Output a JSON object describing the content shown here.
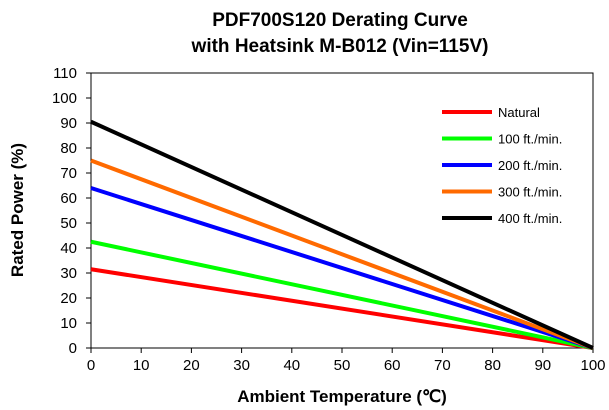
{
  "chart_data": {
    "type": "line",
    "title": [
      "PDF700S120  Derating Curve",
      "with Heatsink M-B012 (Vin=115V)"
    ],
    "xlabel": "Ambient Temperature (℃)",
    "ylabel": "Rated Power (%)",
    "xlim": [
      0,
      100
    ],
    "ylim": [
      0,
      110
    ],
    "xticks": [
      "0",
      "10",
      "20",
      "30",
      "40",
      "50",
      "60",
      "70",
      "80",
      "90",
      "100"
    ],
    "yticks": [
      "0",
      "10",
      "20",
      "30",
      "40",
      "50",
      "60",
      "70",
      "80",
      "90",
      "100",
      "110"
    ],
    "grid": false,
    "legend_position": "upper-right",
    "series": [
      {
        "name": "Natural",
        "color": "#ff0000",
        "x": [
          0,
          100
        ],
        "y": [
          31.5,
          0
        ]
      },
      {
        "name": "100 ft./min.",
        "color": "#00ff00",
        "x": [
          0,
          100
        ],
        "y": [
          42.5,
          0
        ]
      },
      {
        "name": "200 ft./min.",
        "color": "#0000ff",
        "x": [
          0,
          100
        ],
        "y": [
          64,
          0
        ]
      },
      {
        "name": "300 ft./min.",
        "color": "#ff6a00",
        "x": [
          0,
          100
        ],
        "y": [
          75,
          0
        ]
      },
      {
        "name": "400 ft./min.",
        "color": "#000000",
        "x": [
          0,
          100
        ],
        "y": [
          90.5,
          0
        ]
      }
    ]
  }
}
